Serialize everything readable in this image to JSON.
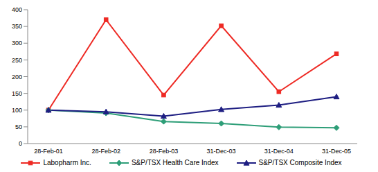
{
  "chart_data": {
    "type": "line",
    "categories": [
      "28-Feb-01",
      "28-Feb-02",
      "28-Feb-03",
      "31-Dec-03",
      "31-Dec-04",
      "31-Dec-05"
    ],
    "series": [
      {
        "name": "Labopharm Inc.",
        "color": "#ee2a24",
        "marker": "square",
        "values": [
          100,
          370,
          145,
          352,
          155,
          268
        ]
      },
      {
        "name": "S&P/TSX Health Care Index",
        "color": "#2e9e78",
        "marker": "diamond",
        "values": [
          100,
          91,
          66,
          60,
          49,
          47
        ]
      },
      {
        "name": "S&P/TSX Composite Index",
        "color": "#1e1e82",
        "marker": "triangle",
        "values": [
          100,
          95,
          82,
          102,
          115,
          140
        ]
      }
    ],
    "ylim": [
      0,
      400
    ],
    "yticks": [
      0,
      50,
      100,
      150,
      200,
      250,
      300,
      350,
      400
    ],
    "grid": false,
    "legend": "bottom"
  }
}
